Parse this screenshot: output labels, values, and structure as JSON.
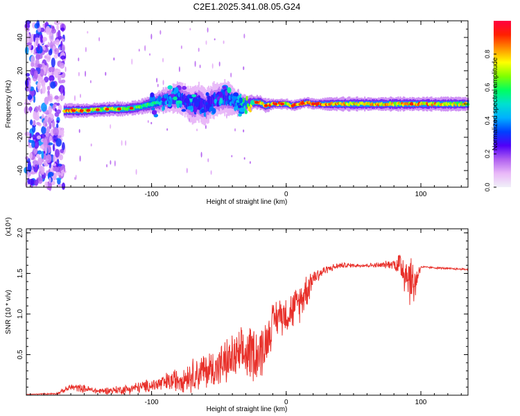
{
  "title": "C2E1.2025.341.08.05.G24",
  "colors": {
    "snr_line": "#e8302a",
    "axis": "#000000",
    "background": "#ffffff"
  },
  "chart_data": [
    {
      "type": "heatmap",
      "title": "C2E1.2025.341.08.05.G24",
      "xlabel": "Height of straight line (km)",
      "ylabel": "Frequency (Hz)",
      "xlim": [
        -193,
        135
      ],
      "ylim": [
        -50,
        50
      ],
      "x_ticks": [
        -100,
        0,
        100
      ],
      "x_tick_labels": [
        "-100",
        "0",
        "100"
      ],
      "y_ticks": [
        -40,
        -20,
        0,
        20,
        40
      ],
      "y_tick_labels": [
        "-40",
        "-20",
        "0",
        "20",
        "40"
      ],
      "colorbar": {
        "label": "Normalized spectral amplitude",
        "range": [
          0,
          1
        ],
        "ticks": [
          0.0,
          0.2,
          0.4,
          0.6,
          0.8
        ],
        "tick_labels": [
          "0.0",
          "0.2",
          "0.4",
          "0.6",
          "0.8"
        ],
        "colormap": [
          "#f0f0f8",
          "#e9b8f8",
          "#b060f0",
          "#5000f8",
          "#0040ff",
          "#00b0ff",
          "#00e0d0",
          "#00ff60",
          "#80ff00",
          "#ffff00",
          "#ff9000",
          "#ff2000",
          "#ff0040"
        ]
      },
      "ridge": {
        "x": [
          -160,
          -150,
          -140,
          -130,
          -120,
          -110,
          -100,
          -92,
          -86,
          -80,
          -75,
          -70,
          -65,
          -60,
          -55,
          -50,
          -45,
          -40,
          -35,
          -30,
          -25,
          -20,
          -15,
          -10,
          -5,
          0,
          5,
          10,
          15,
          20,
          40,
          60,
          80,
          100,
          120,
          135
        ],
        "freq": [
          -4,
          -4,
          -3.5,
          -3,
          -3,
          -2,
          0,
          2,
          3,
          4,
          2,
          -1,
          1,
          -2,
          2,
          3,
          4,
          2,
          0,
          0,
          1,
          1,
          -1,
          0,
          0,
          0,
          -1,
          0,
          1,
          0,
          0,
          0,
          0,
          0,
          0,
          0
        ],
        "amp": [
          0.9,
          0.85,
          0.75,
          0.75,
          0.7,
          0.65,
          0.6,
          0.55,
          0.4,
          0.45,
          0.35,
          0.4,
          0.35,
          0.4,
          0.35,
          0.35,
          0.4,
          0.45,
          0.55,
          0.6,
          0.85,
          0.9,
          0.9,
          0.95,
          0.9,
          0.8,
          0.95,
          0.9,
          0.9,
          0.98,
          0.85,
          0.85,
          0.85,
          0.9,
          0.8,
          0.8
        ],
        "width_hz": [
          4,
          4,
          4,
          4,
          4,
          4,
          5,
          7,
          8,
          9,
          9,
          10,
          11,
          10,
          10,
          10,
          10,
          8,
          7,
          5,
          4,
          4,
          4,
          3,
          3,
          3,
          3,
          3,
          3,
          3,
          4,
          4,
          4,
          4,
          4,
          4
        ]
      },
      "noise_region_x": [
        -193,
        -165
      ]
    },
    {
      "type": "line",
      "xlabel": "Height of straight line (km)",
      "ylabel": "SNR (10 * v/v)",
      "y_multiplier_label": "(x10⁴)",
      "xlim": [
        -193,
        135
      ],
      "ylim": [
        0,
        2.05
      ],
      "x_ticks": [
        -100,
        0,
        100
      ],
      "x_tick_labels": [
        "-100",
        "0",
        "100"
      ],
      "y_ticks": [
        0.5,
        1.0,
        1.5,
        2.0
      ],
      "y_tick_labels": [
        "0.5",
        "1.0",
        "1.5",
        "2.0"
      ],
      "series": [
        {
          "name": "SNR",
          "x": [
            -193,
            -170,
            -160,
            -150,
            -140,
            -120,
            -100,
            -90,
            -80,
            -70,
            -60,
            -50,
            -40,
            -30,
            -25,
            -20,
            -15,
            -10,
            -5,
            0,
            5,
            10,
            15,
            20,
            30,
            40,
            50,
            60,
            70,
            80,
            85,
            90,
            95,
            98,
            100,
            110,
            120,
            135
          ],
          "mean": [
            0.01,
            0.02,
            0.1,
            0.08,
            0.05,
            0.07,
            0.12,
            0.15,
            0.2,
            0.25,
            0.3,
            0.35,
            0.45,
            0.5,
            0.55,
            0.5,
            0.65,
            0.9,
            1.0,
            1.0,
            1.05,
            1.15,
            1.3,
            1.45,
            1.55,
            1.6,
            1.6,
            1.6,
            1.6,
            1.62,
            1.6,
            1.5,
            1.35,
            1.5,
            1.58,
            1.57,
            1.56,
            1.55
          ],
          "noise": [
            0.0,
            0.01,
            0.04,
            0.04,
            0.03,
            0.05,
            0.07,
            0.1,
            0.13,
            0.17,
            0.2,
            0.22,
            0.25,
            0.28,
            0.3,
            0.3,
            0.25,
            0.2,
            0.2,
            0.2,
            0.2,
            0.2,
            0.2,
            0.1,
            0.04,
            0.03,
            0.02,
            0.02,
            0.03,
            0.05,
            0.2,
            0.3,
            0.25,
            0.1,
            0.01,
            0.01,
            0.01,
            0.01
          ]
        }
      ]
    }
  ]
}
